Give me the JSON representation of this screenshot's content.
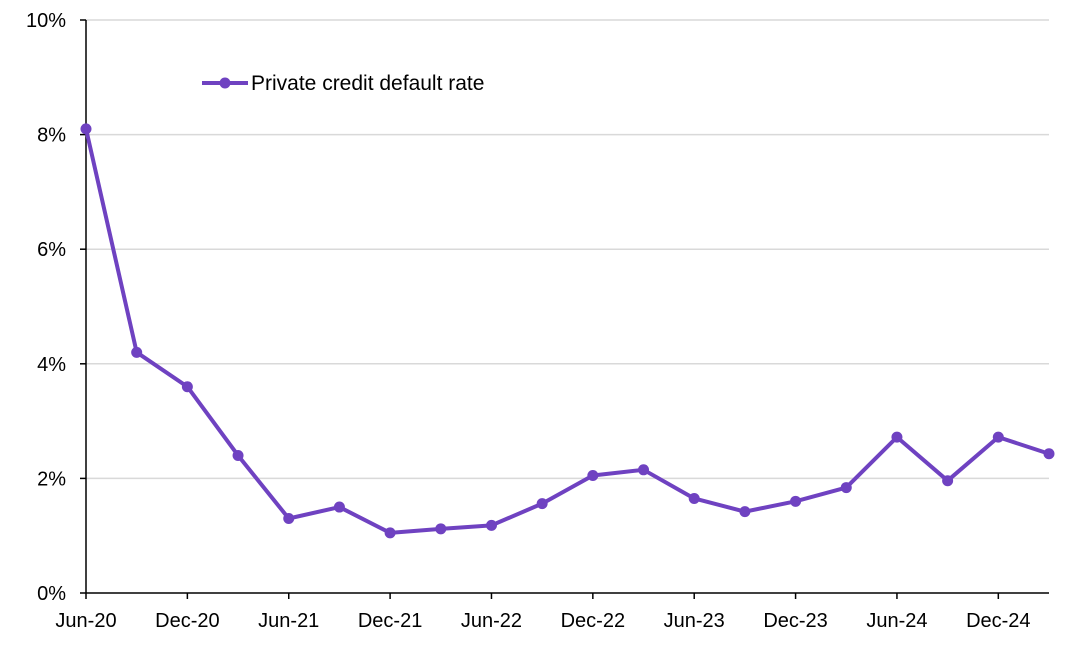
{
  "chart_data": {
    "type": "line",
    "title": "",
    "xlabel": "",
    "ylabel": "",
    "x": [
      "Jun-20",
      "Sep-20",
      "Dec-20",
      "Mar-21",
      "Jun-21",
      "Sep-21",
      "Dec-21",
      "Mar-22",
      "Jun-22",
      "Sep-22",
      "Dec-22",
      "Mar-23",
      "Jun-23",
      "Sep-23",
      "Dec-23",
      "Mar-24",
      "Jun-24",
      "Sep-24",
      "Dec-24",
      "Mar-25"
    ],
    "x_tick_labels": [
      "Jun-20",
      "Dec-20",
      "Jun-21",
      "Dec-21",
      "Jun-22",
      "Dec-22",
      "Jun-23",
      "Dec-23",
      "Jun-24",
      "Dec-24"
    ],
    "y_tick_labels": [
      "0%",
      "2%",
      "4%",
      "6%",
      "8%",
      "10%"
    ],
    "ylim": [
      0,
      10
    ],
    "y_unit": "%",
    "grid": "horizontal",
    "legend_position": "top-left",
    "series": [
      {
        "name": "Private credit default rate",
        "color": "#6f42c1",
        "values": [
          8.1,
          4.2,
          3.6,
          2.4,
          1.3,
          1.5,
          1.05,
          1.12,
          1.18,
          1.56,
          2.05,
          2.15,
          1.65,
          1.42,
          1.6,
          1.84,
          2.72,
          1.96,
          2.72,
          2.43
        ]
      }
    ]
  }
}
